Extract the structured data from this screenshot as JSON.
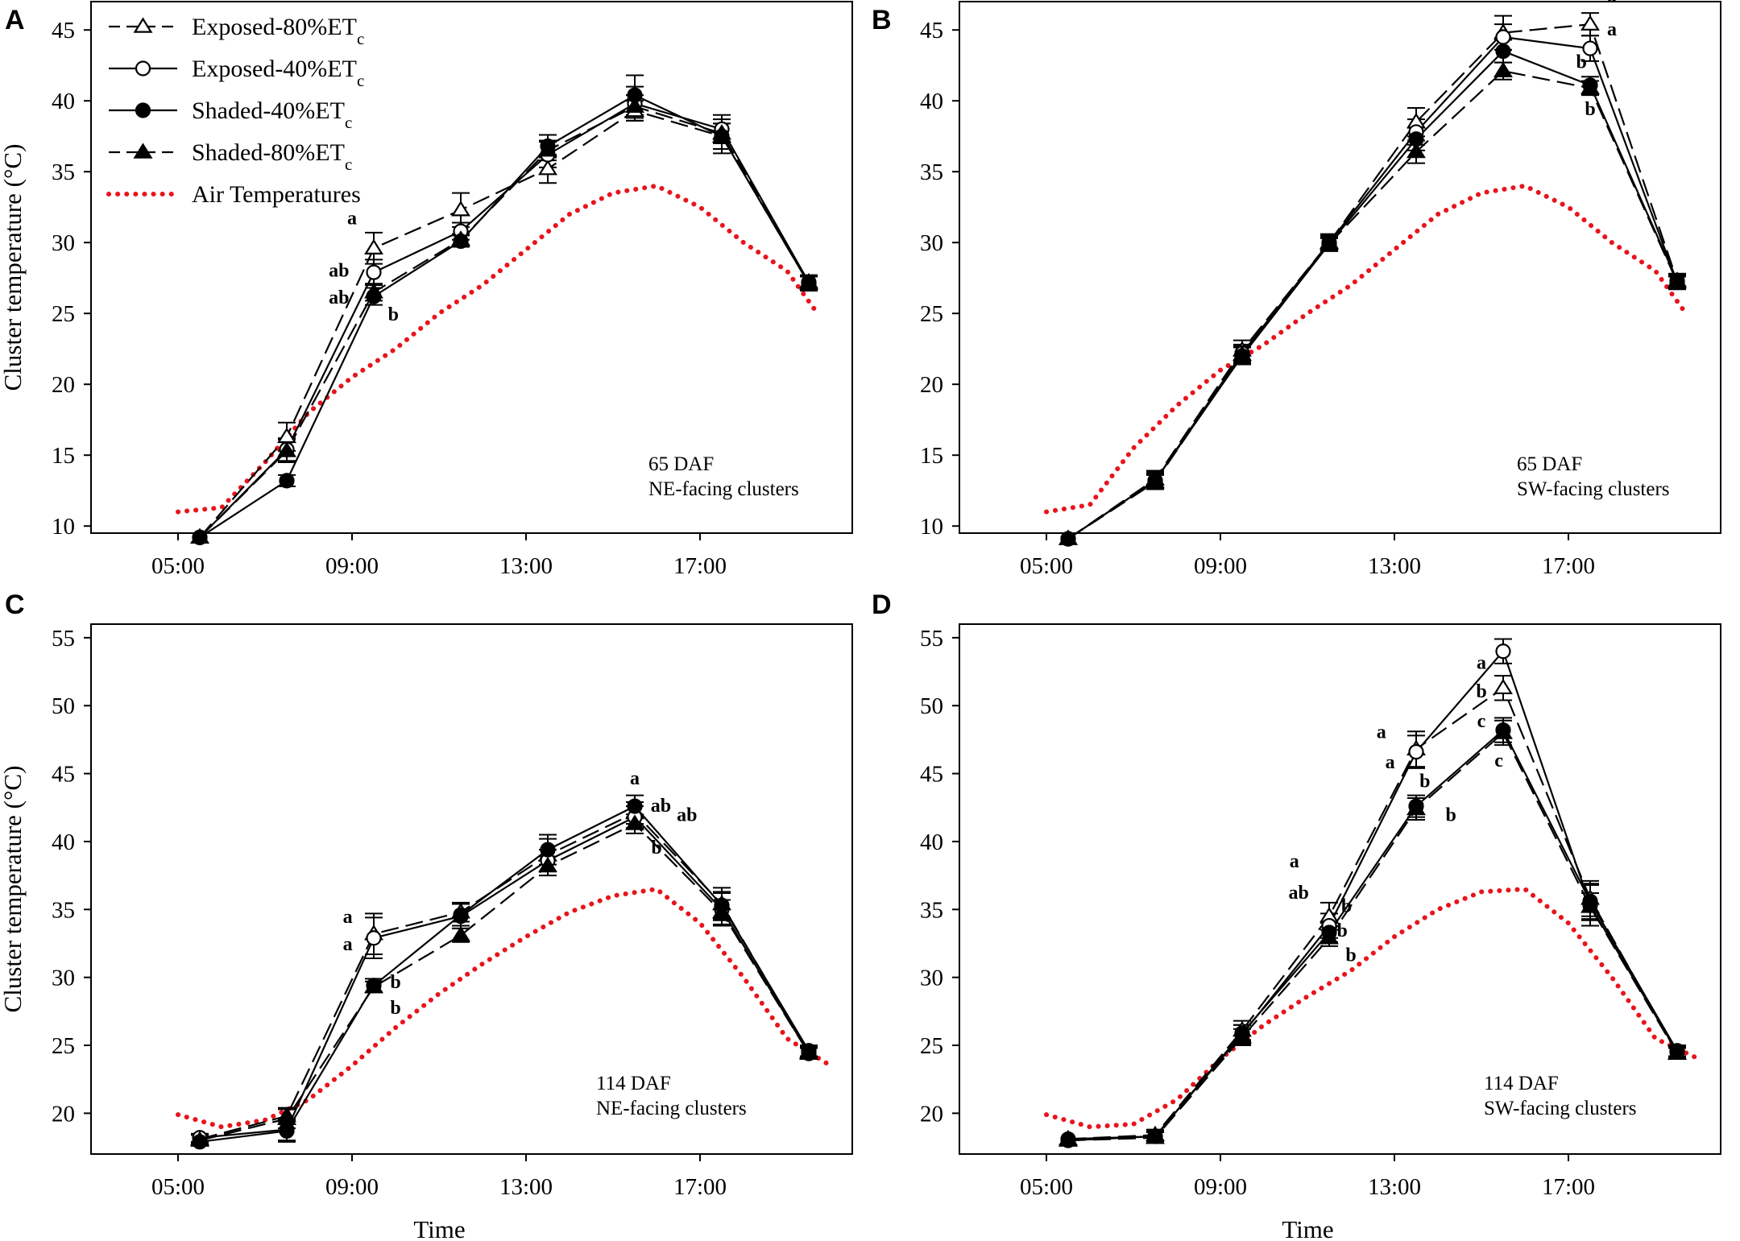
{
  "legend": {
    "entries": [
      {
        "series": "exposed80",
        "label": "Exposed-80%ET",
        "sub": "c"
      },
      {
        "series": "exposed40",
        "label": "Exposed-40%ET",
        "sub": "c"
      },
      {
        "series": "shaded40",
        "label": "Shaded-40%ET",
        "sub": "c"
      },
      {
        "series": "shaded80",
        "label": "Shaded-80%ET",
        "sub": "c"
      },
      {
        "series": "air",
        "label": "Air Temperatures",
        "sub": ""
      }
    ]
  },
  "colors": {
    "air": "#e8141c",
    "series": "#000000"
  },
  "chart_data": [
    {
      "panel": "A",
      "type": "line",
      "title": "",
      "annotation": [
        "65 DAF",
        "NE-facing clusters"
      ],
      "xlabel": "",
      "ylabel": "Cluster temperature (°C)",
      "ylabel_unit_display": "(°C)",
      "xlim": [
        3,
        20.5
      ],
      "ylim": [
        9.5,
        47
      ],
      "xticks": [
        5,
        9,
        13,
        17
      ],
      "xtick_labels": [
        "05:00",
        "09:00",
        "13:00",
        "17:00"
      ],
      "yticks": [
        10,
        15,
        20,
        25,
        30,
        35,
        40,
        45
      ],
      "ytick_labels": [
        "10",
        "15",
        "20",
        "25",
        "30",
        "35",
        "40",
        "45"
      ],
      "x": [
        5.5,
        7.5,
        9.5,
        11.5,
        13.5,
        15.5,
        17.5,
        19.5
      ],
      "series": [
        {
          "name": "Exposed-80%ETc",
          "key": "exposed80",
          "values": [
            9.2,
            16.3,
            29.6,
            32.3,
            35.2,
            39.3,
            37.5,
            27.1
          ],
          "errors": [
            0.2,
            1.0,
            1.1,
            1.2,
            1.0,
            0.7,
            1.2,
            0.5
          ]
        },
        {
          "name": "Exposed-40%ETc",
          "key": "exposed40",
          "values": [
            9.2,
            15.4,
            27.9,
            30.8,
            36.2,
            39.8,
            38.0,
            27.2
          ],
          "errors": [
            0.2,
            0.8,
            0.9,
            0.6,
            0.9,
            1.2,
            1.0,
            0.4
          ]
        },
        {
          "name": "Shaded-40%ETc",
          "key": "shaded40",
          "values": [
            9.2,
            13.2,
            26.2,
            30.1,
            36.8,
            40.4,
            37.5,
            27.1
          ],
          "errors": [
            0.2,
            0.4,
            0.6,
            0.4,
            0.8,
            1.4,
            0.9,
            0.5
          ]
        },
        {
          "name": "Shaded-80%ETc",
          "key": "shaded80",
          "values": [
            9.2,
            15.3,
            26.5,
            30.2,
            36.5,
            39.6,
            37.7,
            27.2
          ],
          "errors": [
            0.2,
            0.8,
            0.6,
            0.4,
            0.7,
            0.8,
            0.7,
            0.5
          ]
        },
        {
          "name": "Air Temperatures",
          "key": "air",
          "curve": [
            [
              5,
              11
            ],
            [
              6,
              11.3
            ],
            [
              7,
              14.5
            ],
            [
              8,
              18
            ],
            [
              9,
              20.5
            ],
            [
              10,
              22.5
            ],
            [
              11,
              25
            ],
            [
              12,
              27
            ],
            [
              13,
              29.5
            ],
            [
              14,
              32
            ],
            [
              15,
              33.5
            ],
            [
              16,
              34
            ],
            [
              17,
              32.5
            ],
            [
              18,
              30
            ],
            [
              19,
              28
            ],
            [
              19.7,
              25
            ]
          ]
        }
      ],
      "labels": [
        {
          "text": "a",
          "x": 9.0,
          "y": 31.3
        },
        {
          "text": "ab",
          "x": 8.7,
          "y": 27.6
        },
        {
          "text": "ab",
          "x": 8.7,
          "y": 25.7
        },
        {
          "text": "b",
          "x": 9.95,
          "y": 24.5
        }
      ]
    },
    {
      "panel": "B",
      "type": "line",
      "title": "",
      "annotation": [
        "65 DAF",
        "SW-facing clusters"
      ],
      "xlabel": "",
      "ylabel": "",
      "xlim": [
        3,
        20.5
      ],
      "ylim": [
        9.5,
        47
      ],
      "xticks": [
        5,
        9,
        13,
        17
      ],
      "xtick_labels": [
        "05:00",
        "09:00",
        "13:00",
        "17:00"
      ],
      "yticks": [
        10,
        15,
        20,
        25,
        30,
        35,
        40,
        45
      ],
      "ytick_labels": [
        "10",
        "15",
        "20",
        "25",
        "30",
        "35",
        "40",
        "45"
      ],
      "x": [
        5.5,
        7.5,
        9.5,
        11.5,
        13.5,
        15.5,
        17.5,
        19.5
      ],
      "series": [
        {
          "name": "Exposed-80%ETc",
          "key": "exposed80",
          "values": [
            9.1,
            13.3,
            22.4,
            30.0,
            38.5,
            44.8,
            45.4,
            27.3
          ],
          "errors": [
            0.2,
            0.6,
            0.7,
            0.6,
            1.0,
            1.2,
            0.8,
            0.5
          ]
        },
        {
          "name": "Exposed-40%ETc",
          "key": "exposed40",
          "values": [
            9.1,
            13.2,
            22.2,
            30.0,
            37.8,
            44.5,
            43.7,
            27.2
          ],
          "errors": [
            0.2,
            0.6,
            0.6,
            0.5,
            0.9,
            0.9,
            0.9,
            0.5
          ]
        },
        {
          "name": "Shaded-40%ETc",
          "key": "shaded40",
          "values": [
            9.1,
            13.2,
            22.0,
            29.9,
            37.3,
            43.5,
            41.1,
            27.3
          ],
          "errors": [
            0.2,
            0.5,
            0.6,
            0.5,
            0.8,
            0.8,
            0.6,
            0.5
          ]
        },
        {
          "name": "Shaded-80%ETc",
          "key": "shaded80",
          "values": [
            9.1,
            13.1,
            22.1,
            29.9,
            36.4,
            42.1,
            40.9,
            27.2
          ],
          "errors": [
            0.2,
            0.5,
            0.6,
            0.4,
            0.8,
            0.6,
            0.5,
            0.4
          ]
        },
        {
          "name": "Air Temperatures",
          "key": "air",
          "curve": [
            [
              5,
              11
            ],
            [
              6,
              11.5
            ],
            [
              7,
              15.5
            ],
            [
              8,
              18.5
            ],
            [
              9,
              21
            ],
            [
              10,
              22.8
            ],
            [
              11,
              25
            ],
            [
              12,
              27
            ],
            [
              13,
              29.5
            ],
            [
              14,
              32
            ],
            [
              15,
              33.5
            ],
            [
              16,
              34
            ],
            [
              17,
              32.5
            ],
            [
              18,
              30
            ],
            [
              19,
              28
            ],
            [
              19.7,
              25
            ]
          ]
        }
      ],
      "labels": [
        {
          "text": "a",
          "x": 18.0,
          "y": 47.0
        },
        {
          "text": "a",
          "x": 18.0,
          "y": 44.6
        },
        {
          "text": "b",
          "x": 17.3,
          "y": 42.3
        },
        {
          "text": "b",
          "x": 17.5,
          "y": 39.0
        }
      ]
    },
    {
      "panel": "C",
      "type": "line",
      "title": "",
      "annotation": [
        "114 DAF",
        "NE-facing clusters"
      ],
      "xlabel": "Time",
      "ylabel": "Cluster temperature (°C)",
      "ylabel_unit_display": "(°C)",
      "xlim": [
        3,
        20.5
      ],
      "ylim": [
        17,
        56
      ],
      "xticks": [
        5,
        9,
        13,
        17
      ],
      "xtick_labels": [
        "05:00",
        "09:00",
        "13:00",
        "17:00"
      ],
      "yticks": [
        20,
        25,
        30,
        35,
        40,
        45,
        50,
        55
      ],
      "ytick_labels": [
        "20",
        "25",
        "30",
        "35",
        "40",
        "45",
        "50",
        "55"
      ],
      "x": [
        5.5,
        7.5,
        9.5,
        11.5,
        13.5,
        15.5,
        17.5,
        19.5
      ],
      "series": [
        {
          "name": "Exposed-80%ETc",
          "key": "exposed80",
          "values": [
            18.1,
            19.8,
            33.2,
            34.8,
            39.0,
            42.1,
            35.4,
            24.5
          ],
          "errors": [
            0.3,
            0.6,
            1.5,
            0.7,
            1.2,
            0.8,
            1.2,
            0.4
          ]
        },
        {
          "name": "Exposed-40%ETc",
          "key": "exposed40",
          "values": [
            18.2,
            18.8,
            32.9,
            34.5,
            38.6,
            41.8,
            35.0,
            24.4
          ],
          "errors": [
            0.3,
            0.8,
            1.5,
            0.9,
            0.8,
            0.8,
            1.2,
            0.4
          ]
        },
        {
          "name": "Shaded-40%ETc",
          "key": "shaded40",
          "values": [
            17.9,
            18.7,
            29.4,
            34.6,
            39.4,
            42.6,
            35.3,
            24.6
          ],
          "errors": [
            0.2,
            0.8,
            0.5,
            0.8,
            1.1,
            0.8,
            1.0,
            0.4
          ]
        },
        {
          "name": "Shaded-80%ETc",
          "key": "shaded80",
          "values": [
            18.0,
            19.6,
            29.3,
            33.1,
            38.2,
            41.3,
            34.8,
            24.4
          ],
          "errors": [
            0.2,
            0.7,
            0.4,
            0.5,
            0.7,
            0.7,
            0.9,
            0.4
          ]
        },
        {
          "name": "Air Temperatures",
          "key": "air",
          "curve": [
            [
              5,
              19.9
            ],
            [
              6,
              19
            ],
            [
              7,
              19.5
            ],
            [
              8,
              21
            ],
            [
              9,
              23.5
            ],
            [
              10,
              26.3
            ],
            [
              11,
              28.8
            ],
            [
              12,
              31
            ],
            [
              13,
              33
            ],
            [
              14,
              34.8
            ],
            [
              15,
              36
            ],
            [
              16,
              36.5
            ],
            [
              17,
              34
            ],
            [
              18,
              30
            ],
            [
              19,
              25.5
            ],
            [
              20,
              23.5
            ]
          ]
        }
      ],
      "labels": [
        {
          "text": "a",
          "x": 15.5,
          "y": 44.2
        },
        {
          "text": "ab",
          "x": 16.1,
          "y": 42.2
        },
        {
          "text": "ab",
          "x": 16.7,
          "y": 41.5
        },
        {
          "text": "b",
          "x": 16.0,
          "y": 39.1
        },
        {
          "text": "a",
          "x": 8.9,
          "y": 34.0
        },
        {
          "text": "a",
          "x": 8.9,
          "y": 32.0
        },
        {
          "text": "b",
          "x": 10.0,
          "y": 29.2
        },
        {
          "text": "b",
          "x": 10.0,
          "y": 27.3
        }
      ]
    },
    {
      "panel": "D",
      "type": "line",
      "title": "",
      "annotation": [
        "114 DAF",
        "SW-facing clusters"
      ],
      "xlabel": "Time",
      "ylabel": "",
      "xlim": [
        3,
        20.5
      ],
      "ylim": [
        17,
        56
      ],
      "xticks": [
        5,
        9,
        13,
        17
      ],
      "xtick_labels": [
        "05:00",
        "09:00",
        "13:00",
        "17:00"
      ],
      "yticks": [
        20,
        25,
        30,
        35,
        40,
        45,
        50,
        55
      ],
      "ytick_labels": [
        "20",
        "25",
        "30",
        "35",
        "40",
        "45",
        "50",
        "55"
      ],
      "x": [
        5.5,
        7.5,
        9.5,
        11.5,
        13.5,
        15.5,
        17.5,
        19.5
      ],
      "series": [
        {
          "name": "Exposed-80%ETc",
          "key": "exposed80",
          "values": [
            18.1,
            18.4,
            26.1,
            34.5,
            46.8,
            51.3,
            35.8,
            24.4
          ],
          "errors": [
            0.2,
            0.4,
            0.7,
            1.0,
            1.3,
            0.9,
            1.3,
            0.4
          ]
        },
        {
          "name": "Exposed-40%ETc",
          "key": "exposed40",
          "values": [
            18.1,
            18.3,
            25.8,
            33.8,
            46.6,
            54.0,
            35.3,
            24.5
          ],
          "errors": [
            0.2,
            0.4,
            0.7,
            0.9,
            1.2,
            0.9,
            1.5,
            0.4
          ]
        },
        {
          "name": "Shaded-40%ETc",
          "key": "shaded40",
          "values": [
            18.0,
            18.3,
            25.9,
            33.3,
            42.6,
            48.2,
            35.6,
            24.6
          ],
          "errors": [
            0.2,
            0.4,
            0.6,
            0.7,
            0.8,
            0.9,
            1.3,
            0.4
          ]
        },
        {
          "name": "Shaded-80%ETc",
          "key": "shaded80",
          "values": [
            18.0,
            18.2,
            25.6,
            32.9,
            42.4,
            48.0,
            35.2,
            24.4
          ],
          "errors": [
            0.2,
            0.4,
            0.6,
            0.6,
            0.8,
            0.9,
            1.0,
            0.4
          ]
        },
        {
          "name": "Air Temperatures",
          "key": "air",
          "curve": [
            [
              5,
              19.9
            ],
            [
              6,
              19
            ],
            [
              7,
              19.2
            ],
            [
              8,
              21
            ],
            [
              9,
              24
            ],
            [
              10,
              26.5
            ],
            [
              11,
              28.6
            ],
            [
              12,
              30.5
            ],
            [
              13,
              33
            ],
            [
              14,
              35
            ],
            [
              15,
              36.3
            ],
            [
              16,
              36.5
            ],
            [
              17,
              34
            ],
            [
              18,
              30
            ],
            [
              19,
              25.5
            ],
            [
              20,
              24
            ]
          ]
        }
      ],
      "labels": [
        {
          "text": "a",
          "x": 15.0,
          "y": 52.7
        },
        {
          "text": "b",
          "x": 15.0,
          "y": 50.6
        },
        {
          "text": "c",
          "x": 15.0,
          "y": 48.4
        },
        {
          "text": "c",
          "x": 15.4,
          "y": 45.5
        },
        {
          "text": "a",
          "x": 12.7,
          "y": 47.6
        },
        {
          "text": "a",
          "x": 12.9,
          "y": 45.4
        },
        {
          "text": "b",
          "x": 13.7,
          "y": 44.0
        },
        {
          "text": "b",
          "x": 14.3,
          "y": 41.5
        },
        {
          "text": "a",
          "x": 10.7,
          "y": 38.1
        },
        {
          "text": "ab",
          "x": 10.8,
          "y": 35.8
        },
        {
          "text": "b",
          "x": 11.9,
          "y": 34.8
        },
        {
          "text": "b",
          "x": 11.8,
          "y": 33.0
        },
        {
          "text": "b",
          "x": 12.0,
          "y": 31.2
        }
      ]
    }
  ],
  "panels": [
    {
      "letter": "A"
    },
    {
      "letter": "B"
    },
    {
      "letter": "C"
    },
    {
      "letter": "D"
    }
  ]
}
